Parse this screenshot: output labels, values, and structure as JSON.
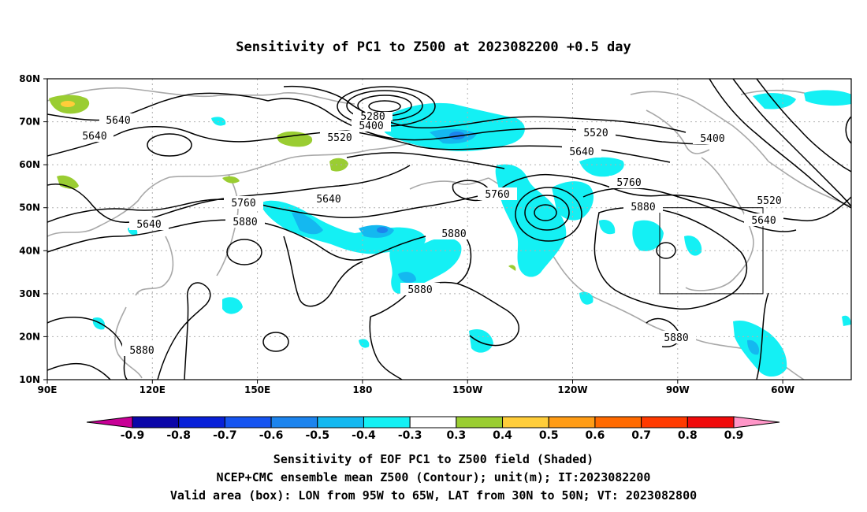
{
  "title": "Sensitivity of PC1 to Z500 at 2023082200 +0.5 day",
  "lat_ticks": [
    "80N",
    "70N",
    "60N",
    "50N",
    "40N",
    "30N",
    "20N",
    "10N"
  ],
  "lon_ticks": [
    "90E",
    "120E",
    "150E",
    "180",
    "150W",
    "120W",
    "90W",
    "60W"
  ],
  "contour_labels": [
    "5640",
    "5640",
    "5520",
    "5400",
    "5280",
    "5640",
    "5640",
    "5760",
    "5880",
    "5760",
    "5880",
    "5880",
    "5640",
    "5520",
    "5400",
    "5760",
    "5880",
    "5520",
    "5640",
    "5880",
    "5880"
  ],
  "colorbar": {
    "labels": [
      "-0.9",
      "-0.8",
      "-0.7",
      "-0.6",
      "-0.5",
      "-0.4",
      "-0.3",
      "0.3",
      "0.4",
      "0.5",
      "0.6",
      "0.7",
      "0.8",
      "0.9"
    ],
    "colors": [
      "#0b06a8",
      "#0820d8",
      "#1654f0",
      "#1c84ee",
      "#14b8f0",
      "#14f0f4",
      "#ffffff",
      "#9acd32",
      "#ffcd3a",
      "#ff9c16",
      "#ff6a00",
      "#ff3a00",
      "#f00a0a"
    ],
    "low_end_color": "#c80096",
    "high_end_color": "#ff96c8"
  },
  "captions": [
    "Sensitivity of EOF PC1 to Z500 field (Shaded)",
    "NCEP+CMC ensemble mean Z500 (Contour); unit(m); IT:2023082200",
    "Valid area (box): LON from 95W to 65W, LAT from 30N to 50N; VT: 2023082800"
  ]
}
